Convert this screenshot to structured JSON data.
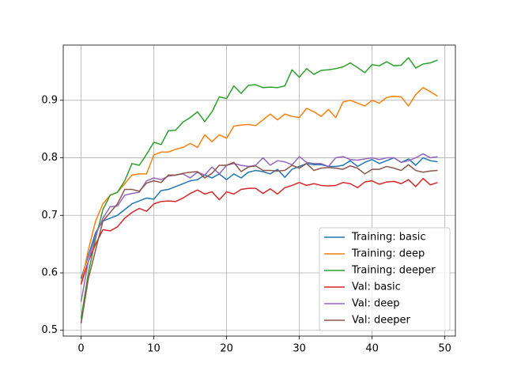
{
  "chart_data": {
    "type": "line",
    "x": [
      0,
      1,
      2,
      3,
      4,
      5,
      6,
      7,
      8,
      9,
      10,
      11,
      12,
      13,
      14,
      15,
      16,
      17,
      18,
      19,
      20,
      21,
      22,
      23,
      24,
      25,
      26,
      27,
      28,
      29,
      30,
      31,
      32,
      33,
      34,
      35,
      36,
      37,
      38,
      39,
      40,
      41,
      42,
      43,
      44,
      45,
      46,
      47,
      48,
      49
    ],
    "series": [
      {
        "name": "Training: basic",
        "color": "#1f77b4",
        "values": [
          0.59,
          0.63,
          0.67,
          0.69,
          0.695,
          0.7,
          0.71,
          0.72,
          0.725,
          0.73,
          0.728,
          0.743,
          0.745,
          0.75,
          0.755,
          0.76,
          0.762,
          0.77,
          0.765,
          0.772,
          0.762,
          0.772,
          0.765,
          0.775,
          0.778,
          0.776,
          0.772,
          0.78,
          0.766,
          0.78,
          0.785,
          0.79,
          0.788,
          0.788,
          0.785,
          0.785,
          0.787,
          0.795,
          0.785,
          0.792,
          0.797,
          0.79,
          0.795,
          0.8,
          0.792,
          0.798,
          0.787,
          0.8,
          0.795,
          0.793
        ]
      },
      {
        "name": "Training: deep",
        "color": "#ff7f0e",
        "values": [
          0.58,
          0.64,
          0.69,
          0.72,
          0.735,
          0.74,
          0.755,
          0.77,
          0.772,
          0.772,
          0.805,
          0.81,
          0.81,
          0.815,
          0.818,
          0.825,
          0.818,
          0.84,
          0.828,
          0.84,
          0.834,
          0.855,
          0.857,
          0.858,
          0.856,
          0.866,
          0.876,
          0.866,
          0.876,
          0.872,
          0.87,
          0.886,
          0.88,
          0.872,
          0.884,
          0.87,
          0.897,
          0.9,
          0.895,
          0.89,
          0.9,
          0.895,
          0.905,
          0.907,
          0.906,
          0.89,
          0.91,
          0.922,
          0.915,
          0.907
        ]
      },
      {
        "name": "Training: deeper",
        "color": "#2ca02c",
        "values": [
          0.52,
          0.6,
          0.66,
          0.71,
          0.735,
          0.74,
          0.76,
          0.79,
          0.787,
          0.806,
          0.827,
          0.823,
          0.847,
          0.848,
          0.862,
          0.87,
          0.88,
          0.863,
          0.88,
          0.906,
          0.903,
          0.925,
          0.912,
          0.926,
          0.927,
          0.922,
          0.923,
          0.922,
          0.925,
          0.953,
          0.94,
          0.955,
          0.945,
          0.952,
          0.953,
          0.955,
          0.958,
          0.965,
          0.957,
          0.948,
          0.962,
          0.96,
          0.967,
          0.96,
          0.961,
          0.974,
          0.956,
          0.963,
          0.965,
          0.97
        ]
      },
      {
        "name": "Val: basic",
        "color": "#d62728",
        "values": [
          0.58,
          0.62,
          0.65,
          0.675,
          0.673,
          0.68,
          0.695,
          0.705,
          0.712,
          0.707,
          0.72,
          0.724,
          0.725,
          0.724,
          0.73,
          0.738,
          0.744,
          0.737,
          0.741,
          0.727,
          0.741,
          0.737,
          0.745,
          0.747,
          0.747,
          0.738,
          0.746,
          0.737,
          0.748,
          0.752,
          0.757,
          0.752,
          0.755,
          0.752,
          0.751,
          0.752,
          0.757,
          0.755,
          0.748,
          0.758,
          0.76,
          0.754,
          0.758,
          0.759,
          0.755,
          0.762,
          0.75,
          0.764,
          0.753,
          0.757
        ]
      },
      {
        "name": "Val: deep",
        "color": "#9467bd",
        "values": [
          0.55,
          0.62,
          0.665,
          0.695,
          0.715,
          0.716,
          0.735,
          0.738,
          0.74,
          0.76,
          0.765,
          0.762,
          0.768,
          0.77,
          0.772,
          0.765,
          0.775,
          0.77,
          0.784,
          0.772,
          0.787,
          0.79,
          0.787,
          0.785,
          0.787,
          0.8,
          0.787,
          0.795,
          0.793,
          0.788,
          0.802,
          0.792,
          0.79,
          0.79,
          0.785,
          0.8,
          0.802,
          0.797,
          0.796,
          0.798,
          0.8,
          0.797,
          0.8,
          0.8,
          0.792,
          0.795,
          0.8,
          0.807,
          0.8,
          0.802
        ]
      },
      {
        "name": "Val: deeper",
        "color": "#8c564b",
        "values": [
          0.512,
          0.59,
          0.64,
          0.69,
          0.705,
          0.72,
          0.745,
          0.745,
          0.742,
          0.756,
          0.76,
          0.757,
          0.77,
          0.77,
          0.773,
          0.775,
          0.776,
          0.765,
          0.773,
          0.787,
          0.787,
          0.792,
          0.776,
          0.784,
          0.786,
          0.778,
          0.778,
          0.777,
          0.778,
          0.787,
          0.782,
          0.79,
          0.778,
          0.782,
          0.783,
          0.782,
          0.78,
          0.786,
          0.782,
          0.772,
          0.78,
          0.78,
          0.785,
          0.782,
          0.778,
          0.788,
          0.778,
          0.775,
          0.777,
          0.778
        ]
      }
    ],
    "xlim": [
      -2.45,
      51.45
    ],
    "xticks": [
      0,
      10,
      20,
      30,
      40,
      50
    ],
    "ylim": [
      0.49,
      0.996
    ],
    "yticks": [
      0.5,
      0.6,
      0.7,
      0.8,
      0.9
    ],
    "grid": true,
    "legend": "lower right"
  }
}
